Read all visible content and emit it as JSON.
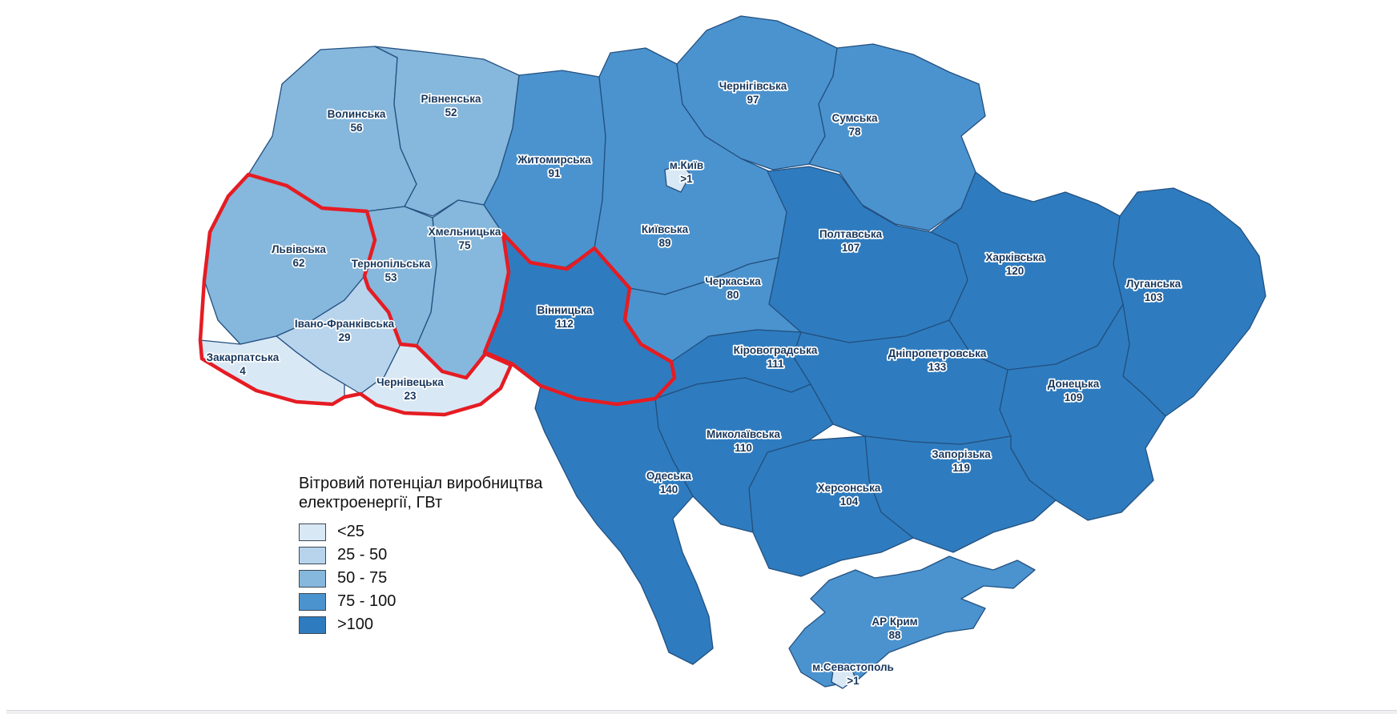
{
  "colors": {
    "c1": "#d9e8f5",
    "c2": "#b7d4ec",
    "c3": "#86b7dc",
    "c4": "#4b93ce",
    "c5": "#2e7cbf",
    "border": "#235080",
    "red_outline": "#e51c23",
    "label_text": "#17375d",
    "label_halo": "#ffffff"
  },
  "legend": {
    "title_line1": "Вітровий потенціал виробництва",
    "title_line2": "електроенергії, ГВт",
    "items": [
      {
        "label": "<25",
        "cls": "c1"
      },
      {
        "label": "25 - 50",
        "cls": "c2"
      },
      {
        "label": "50 - 75",
        "cls": "c3"
      },
      {
        "label": "75 - 100",
        "cls": "c4"
      },
      {
        "label": ">100",
        "cls": "c5"
      }
    ]
  },
  "regions": [
    {
      "id": "volyn",
      "name": "Волинська",
      "value": "56",
      "cls": "c3"
    },
    {
      "id": "rivne",
      "name": "Рівненська",
      "value": "52",
      "cls": "c3"
    },
    {
      "id": "zhytomyr",
      "name": "Житомирська",
      "value": "91",
      "cls": "c4"
    },
    {
      "id": "kyiv_obl",
      "name": "Київська",
      "value": "89",
      "cls": "c4"
    },
    {
      "id": "chernihiv",
      "name": "Чернігівська",
      "value": "97",
      "cls": "c4"
    },
    {
      "id": "sumy",
      "name": "Сумська",
      "value": "78",
      "cls": "c4"
    },
    {
      "id": "kharkiv",
      "name": "Харківська",
      "value": "120",
      "cls": "c5"
    },
    {
      "id": "luhansk",
      "name": "Луганська",
      "value": "103",
      "cls": "c5"
    },
    {
      "id": "donetsk",
      "name": "Донецька",
      "value": "109",
      "cls": "c5"
    },
    {
      "id": "poltava",
      "name": "Полтавська",
      "value": "107",
      "cls": "c5"
    },
    {
      "id": "cherkasy",
      "name": "Черкаська",
      "value": "80",
      "cls": "c4"
    },
    {
      "id": "kirovohrad",
      "name": "Кіровоградська",
      "value": "111",
      "cls": "c5"
    },
    {
      "id": "dnipro",
      "name": "Дніпропетровська",
      "value": "133",
      "cls": "c5"
    },
    {
      "id": "zaporizhzhia",
      "name": "Запорізька",
      "value": "119",
      "cls": "c5"
    },
    {
      "id": "kherson",
      "name": "Херсонська",
      "value": "104",
      "cls": "c5"
    },
    {
      "id": "mykolaiv",
      "name": "Миколаївська",
      "value": "110",
      "cls": "c5"
    },
    {
      "id": "odesa",
      "name": "Одеська",
      "value": "140",
      "cls": "c5"
    },
    {
      "id": "vinnytsia",
      "name": "Вінницька",
      "value": "112",
      "cls": "c5"
    },
    {
      "id": "khmelnytskyi",
      "name": "Хмельницька",
      "value": "75",
      "cls": "c3"
    },
    {
      "id": "ternopil",
      "name": "Тернопільська",
      "value": "53",
      "cls": "c3"
    },
    {
      "id": "lviv",
      "name": "Львівська",
      "value": "62",
      "cls": "c3"
    },
    {
      "id": "ivano",
      "name": "Івано-Франківська",
      "value": "29",
      "cls": "c2"
    },
    {
      "id": "zakarpattia",
      "name": "Закарпатська",
      "value": "4",
      "cls": "c1"
    },
    {
      "id": "chernivtsi",
      "name": "Чернівецька",
      "value": "23",
      "cls": "c1"
    },
    {
      "id": "crimea",
      "name": "АР Крим",
      "value": "88",
      "cls": "c4"
    },
    {
      "id": "kyiv_city",
      "name": "м.Київ",
      "value": ">1",
      "cls": "c1"
    },
    {
      "id": "sevastopol",
      "name": "м.Севастополь",
      "value": ">1",
      "cls": "c1"
    }
  ]
}
